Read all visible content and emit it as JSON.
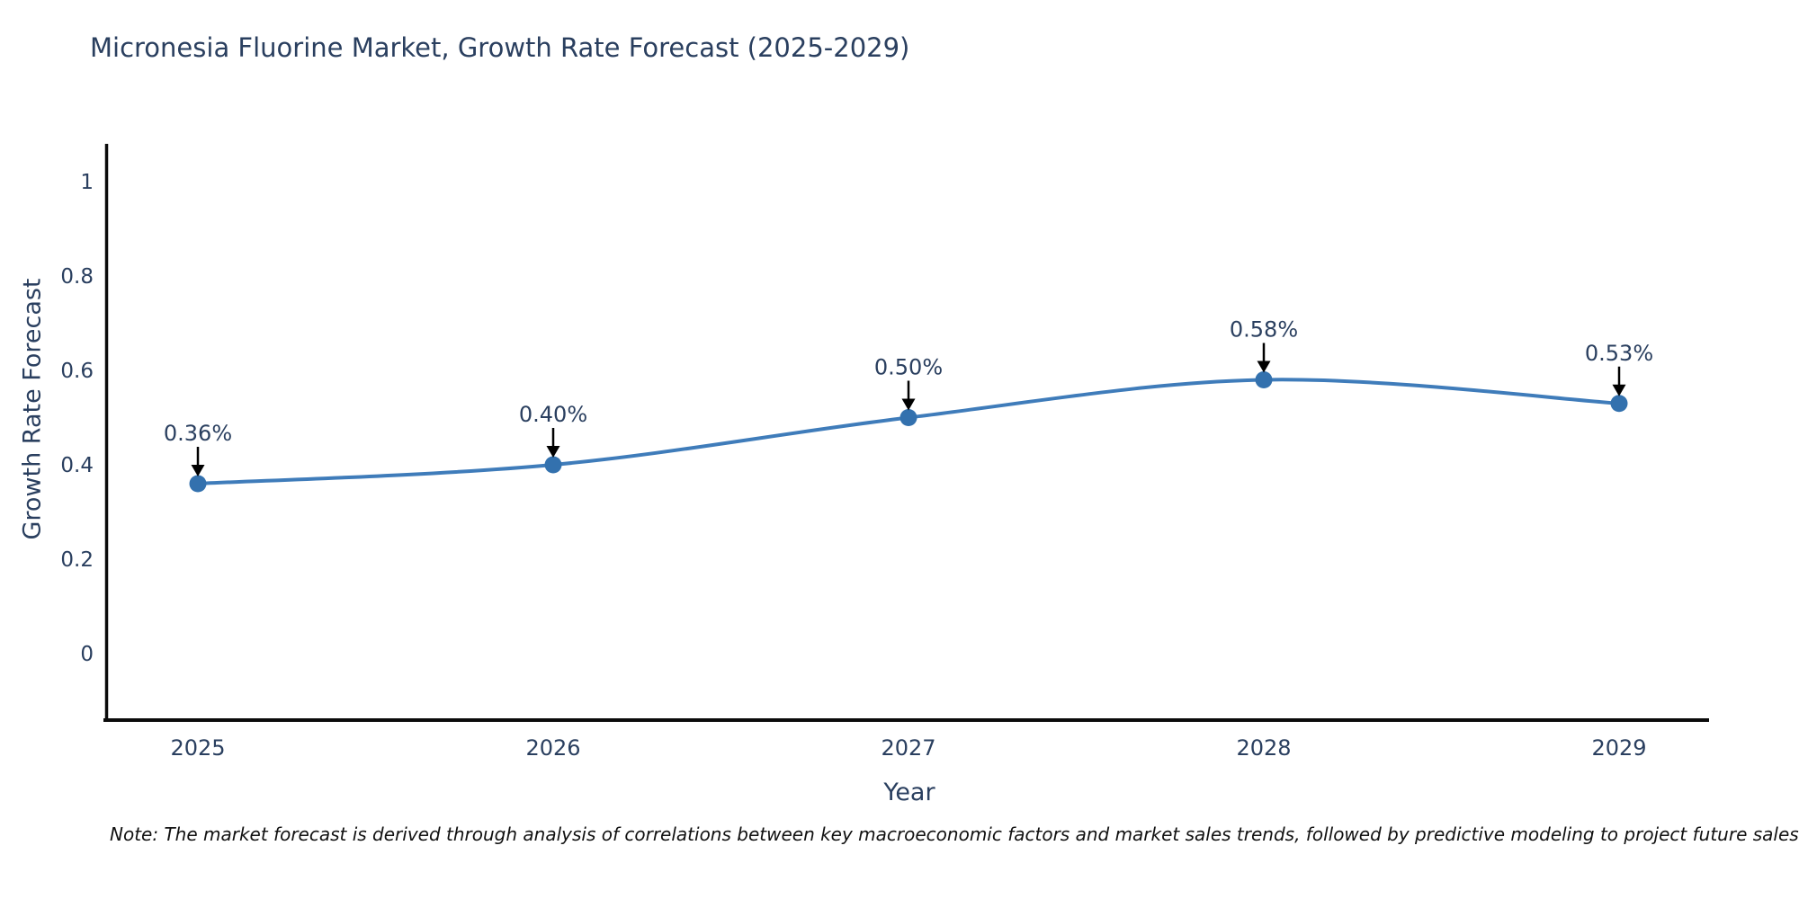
{
  "chart_data": {
    "type": "line",
    "title": "Micronesia Fluorine Market, Growth Rate Forecast (2025-2029)",
    "xlabel": "Year",
    "ylabel": "Growth Rate Forecast",
    "categories": [
      "2025",
      "2026",
      "2027",
      "2028",
      "2029"
    ],
    "series": [
      {
        "name": "Growth Rate Forecast",
        "values": [
          0.36,
          0.4,
          0.5,
          0.58,
          0.53
        ],
        "point_labels": [
          "0.36%",
          "0.40%",
          "0.50%",
          "0.58%",
          "0.53%"
        ]
      }
    ],
    "ytick_values": [
      0,
      0.2,
      0.4,
      0.6,
      0.8,
      1
    ],
    "ytick_labels": [
      "0",
      "0.2",
      "0.4",
      "0.6",
      "0.8",
      "1"
    ],
    "ylim": [
      -0.14,
      1.08
    ],
    "grid": false,
    "legend_position": "none",
    "line_shape": "spline",
    "colors": {
      "line": "#3f7cba",
      "marker": "#3371ae",
      "axis": "#0b0b0b",
      "text": "#2a3f5f",
      "annotation_arrow": "#000000",
      "background": "#ffffff"
    }
  },
  "footnote": "Note: The market forecast is derived through analysis of correlations between key macroeconomic factors and market sales trends, followed by predictive modeling to project future sales"
}
